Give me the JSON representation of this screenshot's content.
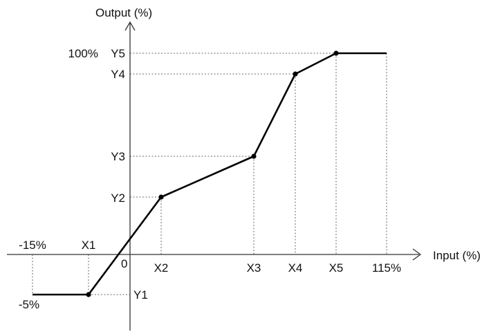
{
  "y_axis_label": "Output (%)",
  "x_axis_label": "Input (%)",
  "origin_label": "0",
  "x_tick_labels": [
    "-15%",
    "X1",
    "X2",
    "X3",
    "X4",
    "X5",
    "115%"
  ],
  "y_tick_labels": [
    "-5%",
    "Y1",
    "Y2",
    "Y3",
    "Y4",
    "Y5",
    "100%"
  ],
  "colors": {
    "curve": "#000000",
    "axes": "#333333",
    "guides": "#666666"
  },
  "diagram": {
    "type": "piecewise-linear characteristic (input vs output)",
    "points": [
      {
        "x_label": "X1",
        "y_label": "Y1"
      },
      {
        "x_label": "X2",
        "y_label": "Y2"
      },
      {
        "x_label": "X3",
        "y_label": "Y3"
      },
      {
        "x_label": "X4",
        "y_label": "Y4"
      },
      {
        "x_label": "X5",
        "y_label": "Y5"
      }
    ],
    "low_saturation": {
      "from": "-15%",
      "level": "-5%"
    },
    "high_saturation": {
      "to": "115%",
      "level": "100%"
    }
  }
}
